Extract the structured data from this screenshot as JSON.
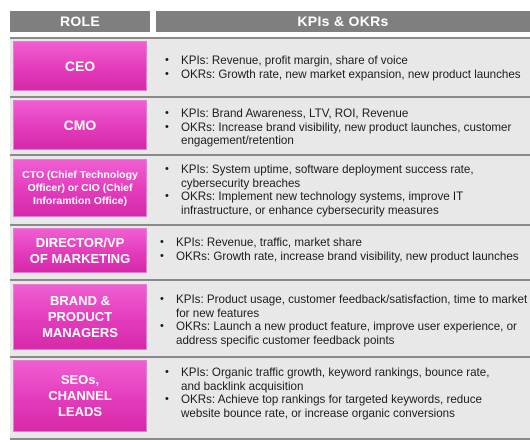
{
  "headers": {
    "role": "ROLE",
    "kpis": "KPIs & OKRs"
  },
  "rows": [
    {
      "role": "CEO",
      "kpis": "KPIs: Revenue, profit margin, share of voice",
      "okrs": "OKRs: Growth rate, new market expansion, new product launches"
    },
    {
      "role": "CMO",
      "kpis": "KPIs: Brand Awareness, LTV, ROI, Revenue",
      "okrs": "OKRs: Increase brand visibility, new product launches, customer engagement/retention"
    },
    {
      "role": "CTO (Chief Technology Officer) or CIO (Chief Inforamtion Office)",
      "kpis": "KPIs: System uptime, software deployment success rate, cybersecurity breaches",
      "okrs": "OKRs: Implement new technology systems, improve IT infrastructure, or enhance cybersecurity measures"
    },
    {
      "role": "DIRECTOR/VP OF MARKETING",
      "kpis": "KPIs: Revenue, traffic, market share",
      "okrs": "OKRs: Growth rate, increase brand visibility, new product launches"
    },
    {
      "role": "BRAND & PRODUCT MANAGERS",
      "kpis": "KPIs: Product usage, customer feedback/satisfaction, time to market for new features",
      "okrs": "OKRs: Launch a new product feature, improve user experience, or address specific customer feedback points"
    },
    {
      "role": "SEOs, CHANNEL LEADS",
      "kpis": "KPIs: Organic traffic growth, keyword rankings, bounce rate, and backlink acquisition",
      "okrs": "OKRs: Achieve top rankings for targeted keywords, reduce website bounce rate, or increase organic conversions"
    }
  ]
}
